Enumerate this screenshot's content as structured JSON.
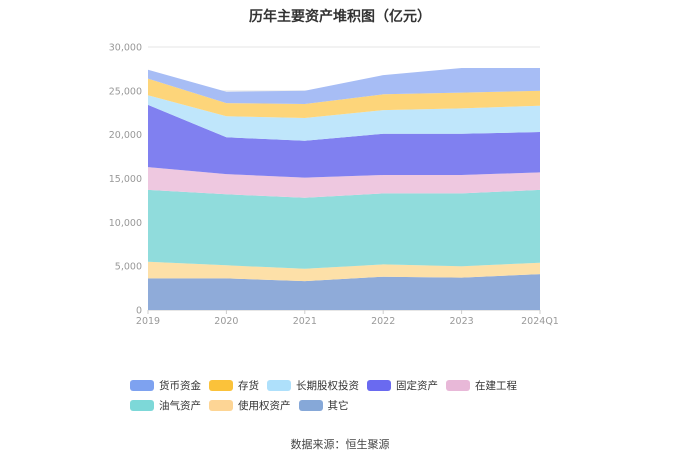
{
  "chart_data": {
    "type": "area",
    "stacked": true,
    "title": "历年主要资产堆积图（亿元）",
    "x": [
      "2019",
      "2020",
      "2021",
      "2022",
      "2023",
      "2024Q1"
    ],
    "ylim": [
      0,
      30000
    ],
    "yticks": [
      "0",
      "5,000",
      "10,000",
      "15,000",
      "20,000",
      "25,000",
      "30,000"
    ],
    "ytick_values": [
      0,
      5000,
      10000,
      15000,
      20000,
      25000,
      30000
    ],
    "grid": true,
    "legend_position": "bottom",
    "series": [
      {
        "name": "其它",
        "color": "#8fabd9",
        "values": [
          3600,
          3600,
          3300,
          3800,
          3700,
          4100
        ]
      },
      {
        "name": "使用权资产",
        "color": "#fde0a8",
        "values": [
          1900,
          1500,
          1400,
          1400,
          1300,
          1300
        ]
      },
      {
        "name": "油气资产",
        "color": "#90dcdc",
        "values": [
          8200,
          8100,
          8100,
          8100,
          8300,
          8300
        ]
      },
      {
        "name": "在建工程",
        "color": "#eec8e0",
        "values": [
          2600,
          2300,
          2300,
          2100,
          2100,
          2000
        ]
      },
      {
        "name": "固定资产",
        "color": "#8080f0",
        "values": [
          7100,
          4200,
          4200,
          4700,
          4700,
          4600
        ]
      },
      {
        "name": "长期股权投资",
        "color": "#bfe6fb",
        "values": [
          1100,
          2400,
          2600,
          2700,
          2900,
          3000
        ]
      },
      {
        "name": "存货",
        "color": "#fdd57a",
        "values": [
          1900,
          1500,
          1600,
          1800,
          1800,
          1700
        ]
      },
      {
        "name": "货币资金",
        "color": "#a7bdf5",
        "values": [
          1000,
          1300,
          1500,
          2200,
          2800,
          2600
        ]
      }
    ]
  },
  "legend_items": [
    {
      "label": "货币资金",
      "color": "#7ea2f0"
    },
    {
      "label": "存货",
      "color": "#fbc23a"
    },
    {
      "label": "长期股权投资",
      "color": "#aee0fb"
    },
    {
      "label": "固定资产",
      "color": "#6a6af0"
    },
    {
      "label": "在建工程",
      "color": "#e8b8d8"
    },
    {
      "label": "油气资产",
      "color": "#7dd8d8"
    },
    {
      "label": "使用权资产",
      "color": "#fdd595"
    },
    {
      "label": "其它",
      "color": "#86a8d8"
    }
  ],
  "source_text": "数据来源：恒生聚源"
}
